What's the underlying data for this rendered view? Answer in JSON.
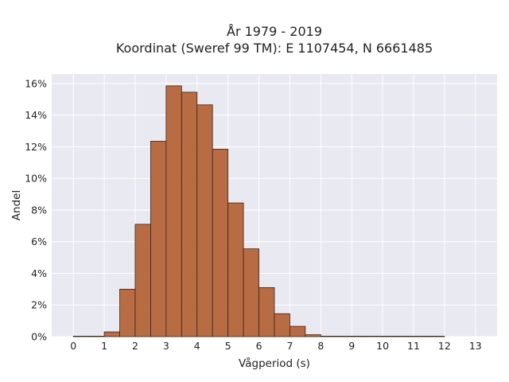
{
  "chart_data": {
    "type": "bar",
    "title_line1": "År 1979 - 2019",
    "title_line2": "Koordinat (Sweref 99 TM): E 1107454, N 6661485",
    "xlabel": "Vågperiod (s)",
    "ylabel": "Andel",
    "bin_width": 0.5,
    "xlim": [
      -0.7,
      13.7
    ],
    "ylim": [
      0,
      16.6
    ],
    "x_ticks": [
      0,
      1,
      2,
      3,
      4,
      5,
      6,
      7,
      8,
      9,
      10,
      11,
      12,
      13
    ],
    "x_tick_labels": [
      "0",
      "1",
      "2",
      "3",
      "4",
      "5",
      "6",
      "7",
      "8",
      "9",
      "10",
      "11",
      "12",
      "13"
    ],
    "y_ticks": [
      0,
      2,
      4,
      6,
      8,
      10,
      12,
      14,
      16
    ],
    "y_tick_labels": [
      "0%",
      "2%",
      "4%",
      "6%",
      "8%",
      "10%",
      "12%",
      "14%",
      "16%"
    ],
    "bins": [
      {
        "start": 0.0,
        "value": 0.02
      },
      {
        "start": 0.5,
        "value": 0.0
      },
      {
        "start": 1.0,
        "value": 0.3
      },
      {
        "start": 1.5,
        "value": 3.0
      },
      {
        "start": 2.0,
        "value": 7.1
      },
      {
        "start": 2.5,
        "value": 12.35
      },
      {
        "start": 3.0,
        "value": 15.85
      },
      {
        "start": 3.5,
        "value": 15.45
      },
      {
        "start": 4.0,
        "value": 14.65
      },
      {
        "start": 4.5,
        "value": 11.85
      },
      {
        "start": 5.0,
        "value": 8.45
      },
      {
        "start": 5.5,
        "value": 5.55
      },
      {
        "start": 6.0,
        "value": 3.1
      },
      {
        "start": 6.5,
        "value": 1.45
      },
      {
        "start": 7.0,
        "value": 0.65
      },
      {
        "start": 7.5,
        "value": 0.12
      },
      {
        "start": 8.0,
        "value": 0.03
      },
      {
        "start": 8.5,
        "value": 0.02
      },
      {
        "start": 9.0,
        "value": 0.01
      },
      {
        "start": 9.5,
        "value": 0.01
      },
      {
        "start": 10.0,
        "value": 0.01
      },
      {
        "start": 10.5,
        "value": 0.01
      },
      {
        "start": 11.0,
        "value": 0.01
      },
      {
        "start": 11.5,
        "value": 0.01
      }
    ],
    "grid": true,
    "legend": "none",
    "colors": {
      "bar_fill": "#b5653a",
      "bar_stroke": "#3a2418",
      "plot_bg": "#e9e9f1",
      "grid": "#ffffff"
    }
  }
}
